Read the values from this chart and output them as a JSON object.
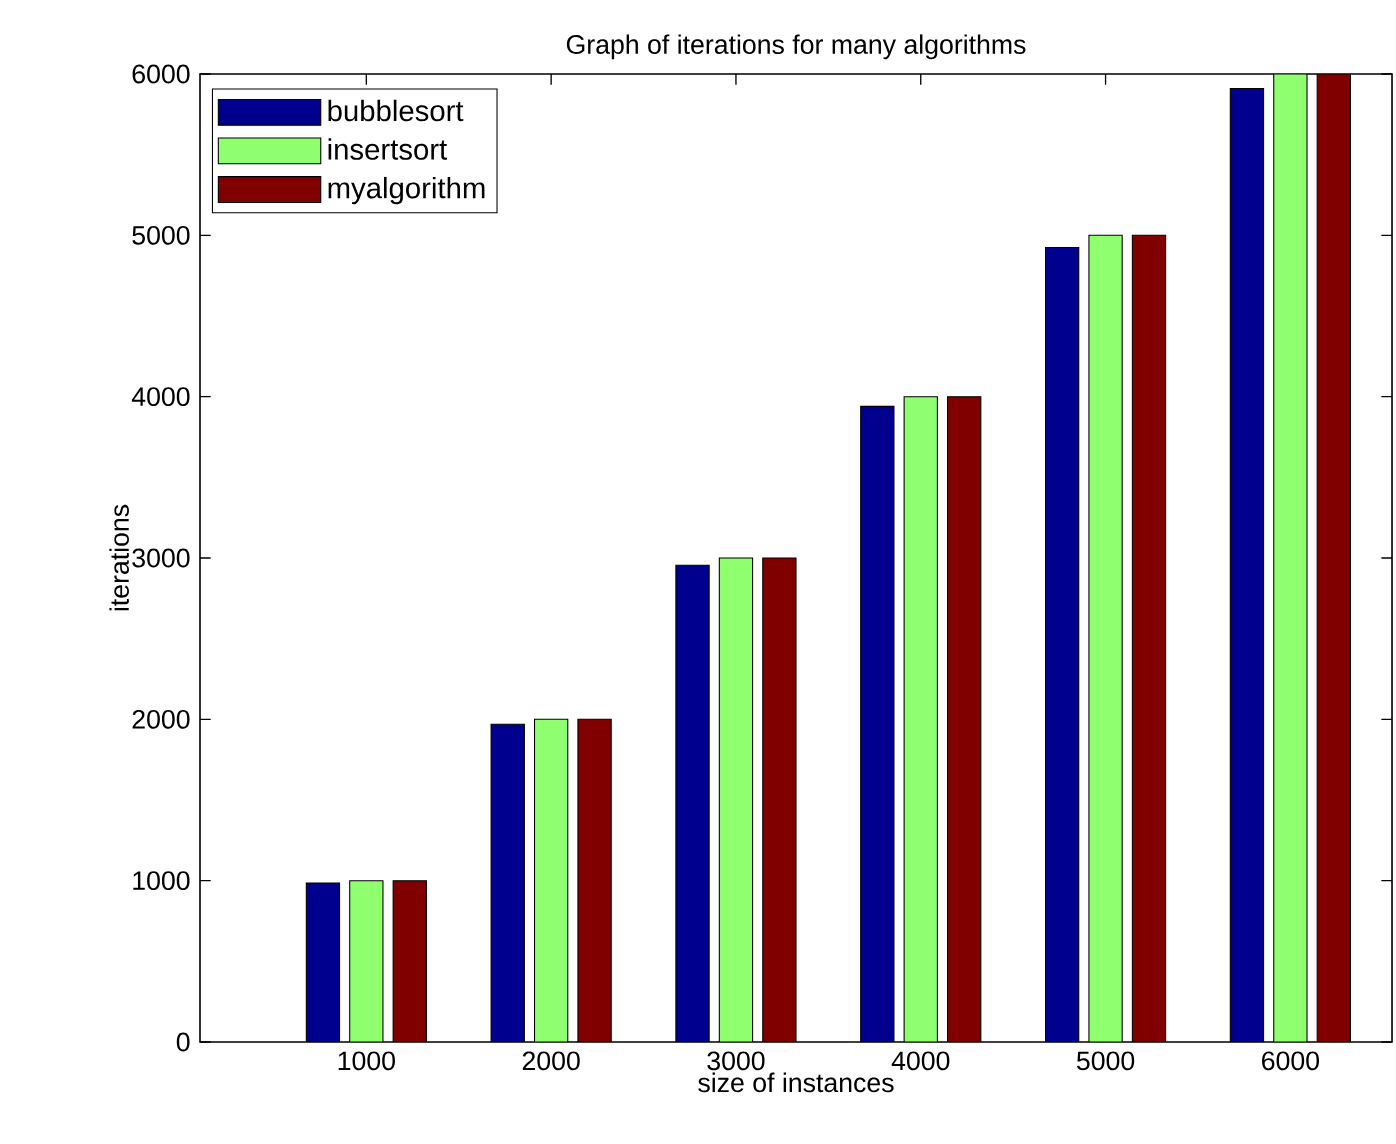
{
  "chart_data": {
    "type": "bar",
    "title": "Graph of iterations for many algorithms",
    "xlabel": "size of instances",
    "ylabel": "iterations",
    "categories": [
      "1000",
      "2000",
      "3000",
      "4000",
      "5000",
      "6000"
    ],
    "series": [
      {
        "name": "bubblesort",
        "color": "#00008f",
        "values": [
          985,
          1970,
          2955,
          3940,
          4925,
          5910
        ]
      },
      {
        "name": "insertsort",
        "color": "#8fff70",
        "values": [
          1000,
          2000,
          3000,
          4000,
          5000,
          6000
        ]
      },
      {
        "name": "myalgorithm",
        "color": "#800000",
        "values": [
          1000,
          2000,
          3000,
          4000,
          5000,
          6000
        ]
      }
    ],
    "ylim": [
      0,
      6000
    ],
    "yticks": [
      0,
      1000,
      2000,
      3000,
      4000,
      5000,
      6000
    ],
    "grid": false,
    "legend": "top left"
  }
}
